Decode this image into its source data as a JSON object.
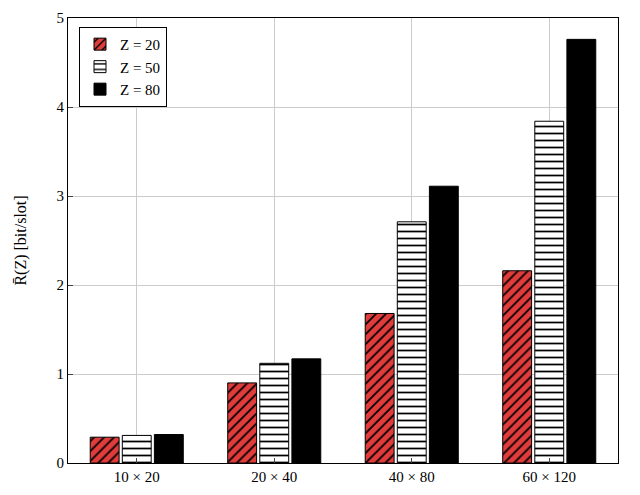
{
  "chart_data": {
    "type": "bar",
    "ylabel": "R̄(Z) [bit/slot]",
    "categories": [
      "10 × 20",
      "20 × 40",
      "40 × 80",
      "60 × 120"
    ],
    "series": [
      {
        "name": "Z = 20",
        "color": "#e03c3c",
        "marker": "hatched",
        "values": [
          0.29,
          0.9,
          1.68,
          2.16
        ]
      },
      {
        "name": "Z = 50",
        "color": "#ffffff",
        "marker": "striped",
        "values": [
          0.31,
          1.12,
          2.71,
          3.84
        ]
      },
      {
        "name": "Z = 80",
        "color": "#000000",
        "marker": "solid",
        "values": [
          0.32,
          1.17,
          3.11,
          4.76
        ]
      }
    ],
    "ylim": [
      0,
      5
    ],
    "yticks": [
      0,
      1,
      2,
      3,
      4,
      5
    ],
    "grid": true,
    "legend": "top-left"
  }
}
